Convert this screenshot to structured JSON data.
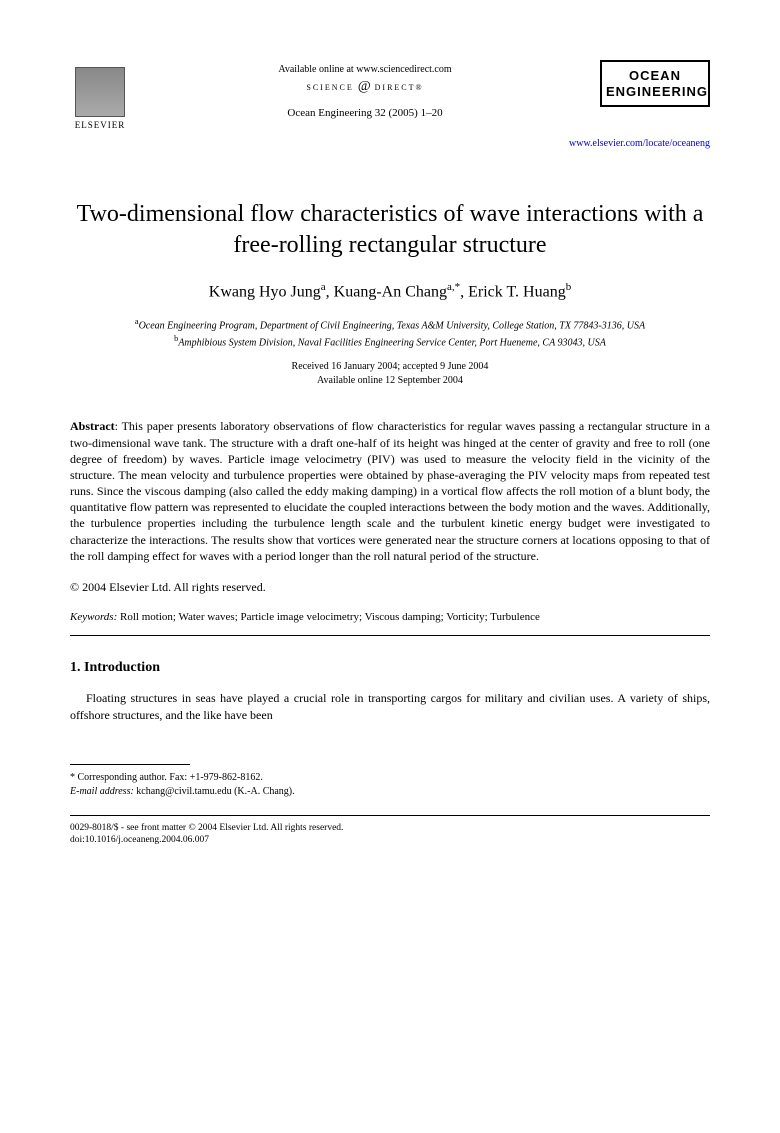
{
  "header": {
    "available_text": "Available online at www.sciencedirect.com",
    "sd_left": "SCIENCE",
    "sd_at": "@",
    "sd_right": "DIRECT®",
    "journal_ref": "Ocean Engineering 32 (2005) 1–20",
    "publisher_name": "ELSEVIER",
    "journal_name_line1": "OCEAN",
    "journal_name_line2": "ENGINEERING",
    "journal_url": "www.elsevier.com/locate/oceaneng"
  },
  "title": "Two-dimensional flow characteristics of wave interactions with a free-rolling rectangular structure",
  "authors_html_parts": {
    "a1_name": "Kwang Hyo Jung",
    "a1_sup": "a",
    "a2_name": "Kuang-An Chang",
    "a2_sup": "a,*",
    "a3_name": "Erick T. Huang",
    "a3_sup": "b"
  },
  "affiliations": {
    "a_sup": "a",
    "a_text": "Ocean Engineering Program, Department of Civil Engineering, Texas A&M University, College Station, TX 77843-3136, USA",
    "b_sup": "b",
    "b_text": "Amphibious System Division, Naval Facilities Engineering Service Center, Port Hueneme, CA 93043, USA"
  },
  "dates": {
    "line1": "Received 16 January 2004; accepted 9 June 2004",
    "line2": "Available online 12 September 2004"
  },
  "abstract": {
    "label": "Abstract",
    "text": "This paper presents laboratory observations of flow characteristics for regular waves passing a rectangular structure in a two-dimensional wave tank. The structure with a draft one-half of its height was hinged at the center of gravity and free to roll (one degree of freedom) by waves. Particle image velocimetry (PIV) was used to measure the velocity field in the vicinity of the structure. The mean velocity and turbulence properties were obtained by phase-averaging the PIV velocity maps from repeated test runs. Since the viscous damping (also called the eddy making damping) in a vortical flow affects the roll motion of a blunt body, the quantitative flow pattern was represented to elucidate the coupled interactions between the body motion and the waves. Additionally, the turbulence properties including the turbulence length scale and the turbulent kinetic energy budget were investigated to characterize the interactions. The results show that vortices were generated near the structure corners at locations opposing to that of the roll damping effect for waves with a period longer than the roll natural period of the structure."
  },
  "copyright": "© 2004 Elsevier Ltd. All rights reserved.",
  "keywords": {
    "label": "Keywords:",
    "text": "Roll motion; Water waves; Particle image velocimetry; Viscous damping; Vorticity; Turbulence"
  },
  "section1": {
    "heading": "1. Introduction",
    "para": "Floating structures in seas have played a crucial role in transporting cargos for military and civilian uses. A variety of ships, offshore structures, and the like have been"
  },
  "footnotes": {
    "corr": "* Corresponding author. Fax: +1-979-862-8162.",
    "email_label": "E-mail address:",
    "email": "kchang@civil.tamu.edu (K.-A. Chang)."
  },
  "footer": {
    "line1": "0029-8018/$ - see front matter © 2004 Elsevier Ltd. All rights reserved.",
    "line2": "doi:10.1016/j.oceaneng.2004.06.007"
  },
  "colors": {
    "text": "#000000",
    "link": "#0000cc",
    "background": "#ffffff"
  }
}
